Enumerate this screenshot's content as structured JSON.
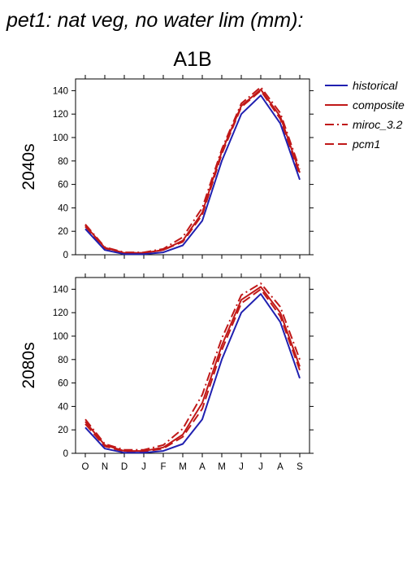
{
  "title": "pet1: nat veg, no water lim (mm):",
  "scenario": "A1B",
  "colors": {
    "historical": "#2020b0",
    "scenario": "#c01818"
  },
  "legend": [
    {
      "name": "historical",
      "dash": "solid"
    },
    {
      "name": "composite",
      "dash": "solid"
    },
    {
      "name": "miroc_3.2",
      "dash": "dashdot"
    },
    {
      "name": "pcm1",
      "dash": "dash"
    }
  ],
  "chart_data": [
    {
      "type": "line",
      "row_label": "2040s",
      "categories": [
        "O",
        "N",
        "D",
        "J",
        "F",
        "M",
        "A",
        "M",
        "J",
        "J",
        "A",
        "S"
      ],
      "ylim": [
        0,
        150
      ],
      "yticks": [
        0,
        20,
        40,
        60,
        80,
        100,
        120,
        140
      ],
      "series": [
        {
          "name": "historical",
          "values": [
            22,
            4,
            0.5,
            0.5,
            2,
            8,
            29,
            80,
            120,
            136,
            112,
            64
          ]
        },
        {
          "name": "composite",
          "values": [
            25,
            6,
            1.5,
            1.5,
            4,
            12,
            36,
            88,
            127,
            141,
            118,
            70
          ]
        },
        {
          "name": "miroc_3.2",
          "values": [
            26,
            6.5,
            2,
            2,
            5,
            15,
            40,
            90,
            129,
            143,
            121,
            73
          ]
        },
        {
          "name": "pcm1",
          "values": [
            24,
            5.5,
            1.5,
            1.5,
            4,
            11,
            34,
            86,
            126,
            140,
            116,
            68
          ]
        }
      ]
    },
    {
      "type": "line",
      "row_label": "2080s",
      "categories": [
        "O",
        "N",
        "D",
        "J",
        "F",
        "M",
        "A",
        "M",
        "J",
        "J",
        "A",
        "S"
      ],
      "ylim": [
        0,
        150
      ],
      "yticks": [
        0,
        20,
        40,
        60,
        80,
        100,
        120,
        140
      ],
      "series": [
        {
          "name": "historical",
          "values": [
            22,
            4,
            0.5,
            0.5,
            2,
            8,
            29,
            80,
            120,
            136,
            112,
            64
          ]
        },
        {
          "name": "composite",
          "values": [
            27,
            7,
            2,
            2,
            5,
            16,
            43,
            92,
            131,
            142,
            120,
            74
          ]
        },
        {
          "name": "miroc_3.2",
          "values": [
            29,
            8,
            3,
            3,
            7,
            21,
            50,
            98,
            135,
            145,
            125,
            80
          ]
        },
        {
          "name": "pcm1",
          "values": [
            25,
            6,
            1.5,
            1.5,
            4,
            14,
            38,
            88,
            128,
            140,
            117,
            71
          ]
        }
      ]
    }
  ]
}
